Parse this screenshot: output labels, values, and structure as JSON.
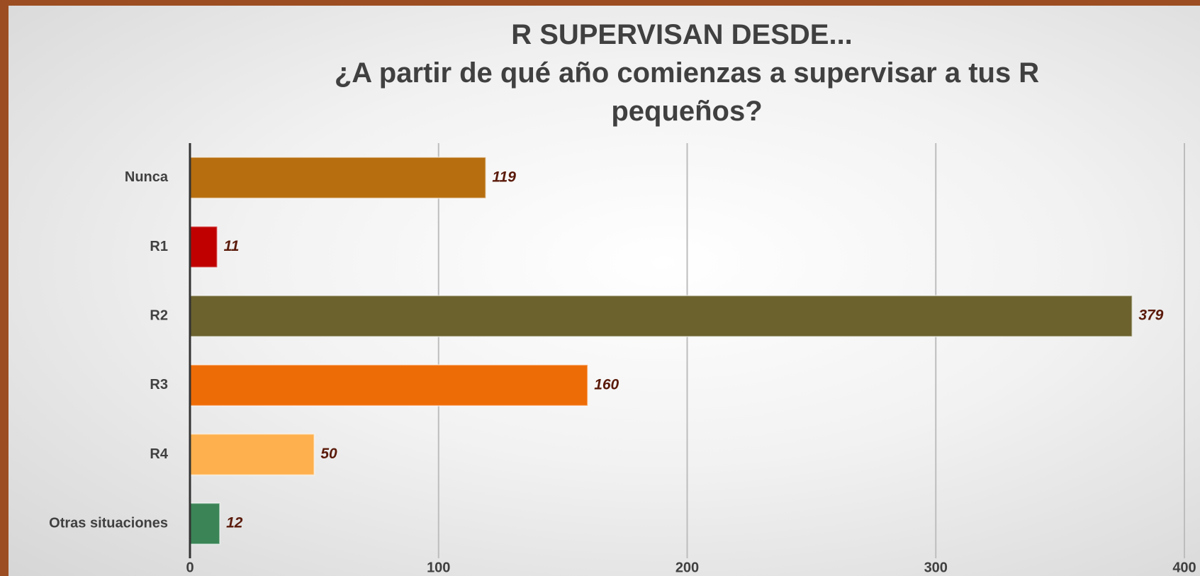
{
  "chart_data": {
    "type": "hbar",
    "title": "R SUPERVISAN DESDE...",
    "subtitle": "¿A partir de qué año comienzas a supervisar a tus R pequeños?",
    "categories": [
      "Nunca",
      "R1",
      "R2",
      "R3",
      "R4",
      "Otras situaciones"
    ],
    "values": [
      119,
      11,
      379,
      160,
      50,
      12
    ],
    "colors": [
      "#b76e0f",
      "#c00000",
      "#6b622e",
      "#ee6c06",
      "#fdb04d",
      "#3a8456"
    ],
    "xlim": [
      0,
      400
    ],
    "xticks": [
      0,
      100,
      200,
      300,
      400
    ],
    "grid": true
  }
}
